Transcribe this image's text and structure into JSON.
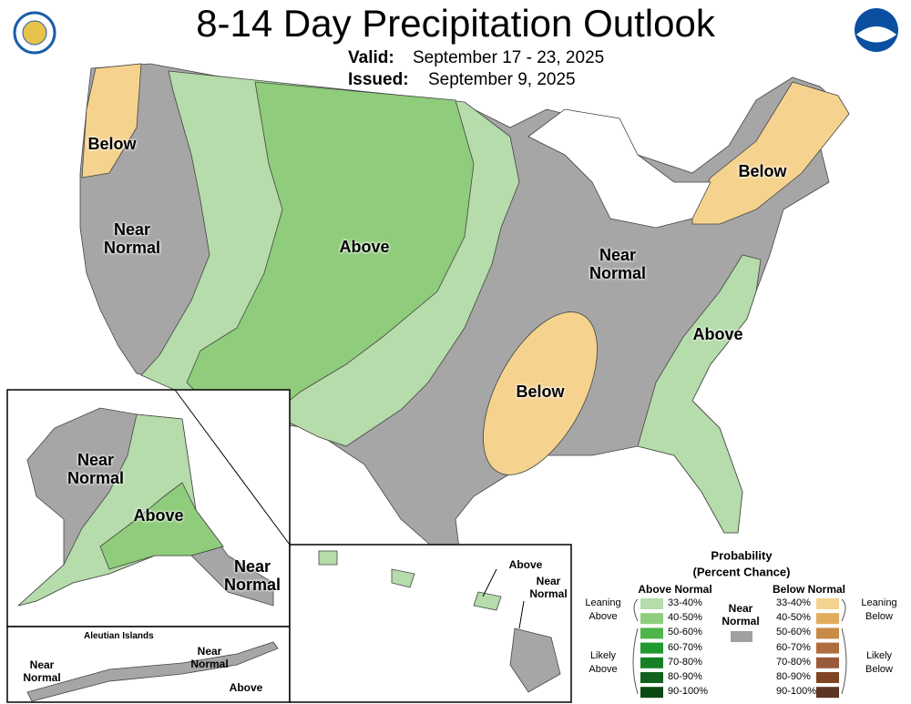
{
  "header": {
    "title": "8-14 Day Precipitation Outlook",
    "valid_label": "Valid:",
    "valid_dates": "September 17 - 23, 2025",
    "issued_label": "Issued:",
    "issued_date": "September 9, 2025"
  },
  "map_labels": [
    "Below",
    "Near Normal",
    "Above",
    "Below",
    "Near Normal",
    "Above",
    "Below",
    "Near Normal",
    "Above",
    "Near Normal",
    "Near Normal",
    "Near Normal",
    "Above",
    "Above",
    "Near Normal"
  ],
  "aleutian_title": "Aleutian Islands",
  "legend": {
    "title": "Probability",
    "subtitle": "(Percent Chance)",
    "above_heading": "Above Normal",
    "below_heading": "Below Normal",
    "near_label": "Near Normal",
    "near_color": "#a0a0a0",
    "above_groups": [
      "Leaning Above",
      "Likely Above"
    ],
    "below_groups": [
      "Leaning Below",
      "Likely Below"
    ],
    "above": [
      {
        "range": "33-40%",
        "color": "#b5dcaa"
      },
      {
        "range": "40-50%",
        "color": "#8fcc7b"
      },
      {
        "range": "50-60%",
        "color": "#4fb54a"
      },
      {
        "range": "60-70%",
        "color": "#1e9a30"
      },
      {
        "range": "70-80%",
        "color": "#178026"
      },
      {
        "range": "80-90%",
        "color": "#11621d"
      },
      {
        "range": "90-100%",
        "color": "#0b4a13"
      }
    ],
    "below": [
      {
        "range": "33-40%",
        "color": "#f5d38f"
      },
      {
        "range": "40-50%",
        "color": "#e0ad5c"
      },
      {
        "range": "50-60%",
        "color": "#c98a46"
      },
      {
        "range": "60-70%",
        "color": "#b06c3e"
      },
      {
        "range": "70-80%",
        "color": "#995a3b"
      },
      {
        "range": "80-90%",
        "color": "#7f4421"
      },
      {
        "range": "90-100%",
        "color": "#5c3525"
      }
    ]
  }
}
